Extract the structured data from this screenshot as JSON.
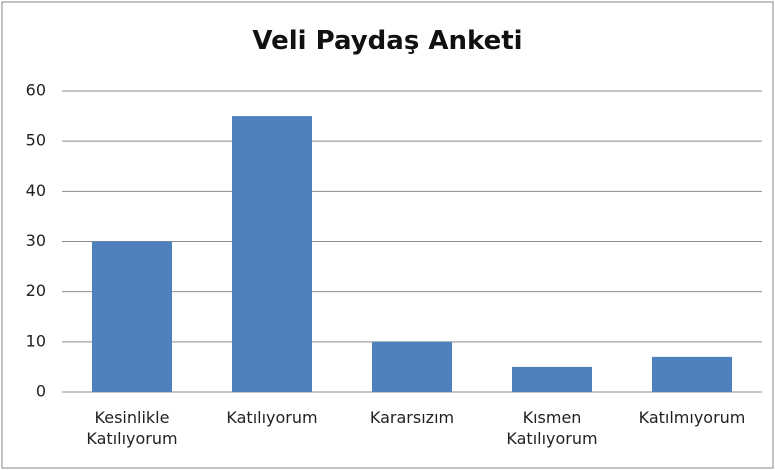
{
  "chart_data": {
    "type": "bar",
    "title": "Veli Paydaş Anketi",
    "categories": [
      "Kesinlikle Katılıyorum",
      "Katılıyorum",
      "Kararsızım",
      "Kısmen Katılıyorum",
      "Katılmıyorum"
    ],
    "values": [
      30,
      55,
      10,
      5,
      7
    ],
    "color": "#4f81bd",
    "ylim": [
      0,
      60
    ],
    "yticks": [
      0,
      10,
      20,
      30,
      40,
      50,
      60
    ],
    "grid": true
  }
}
